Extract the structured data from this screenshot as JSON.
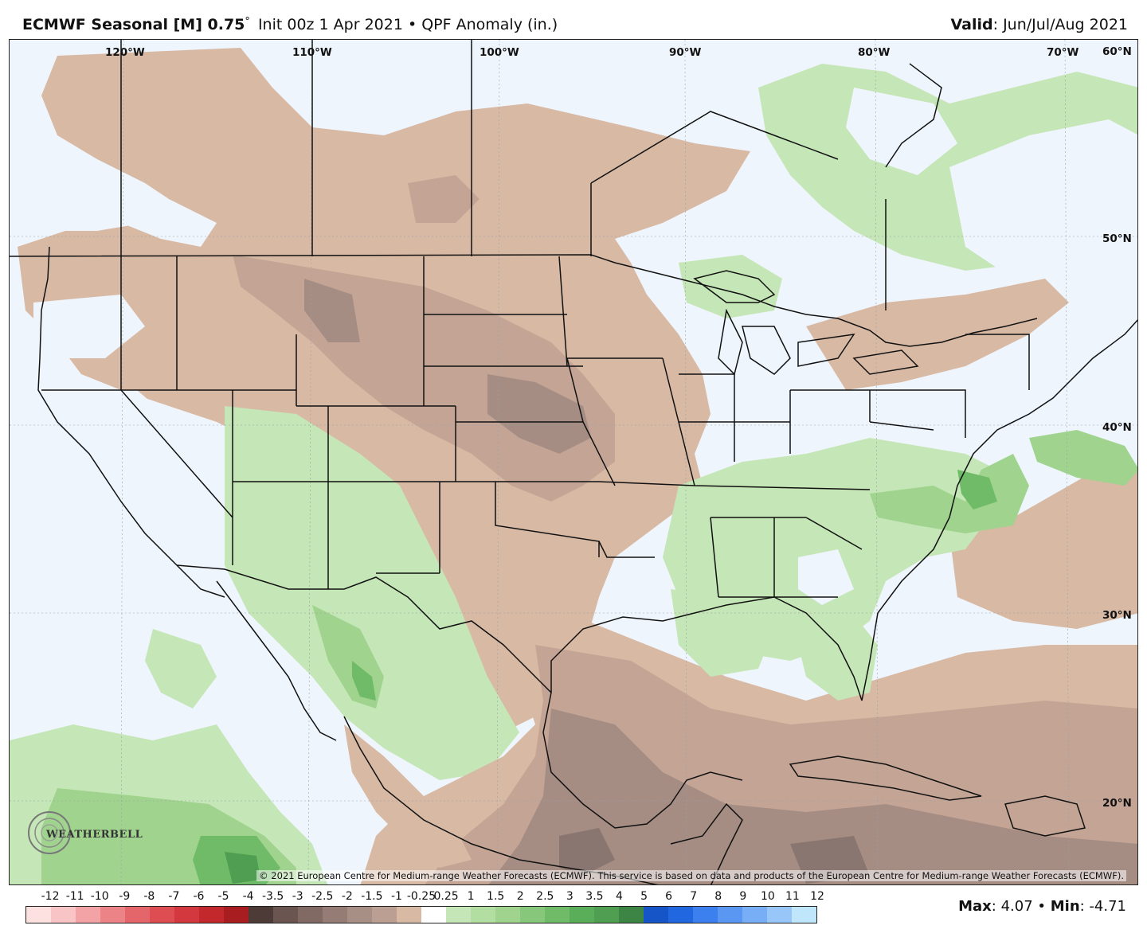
{
  "header": {
    "model": "ECMWF Seasonal [M] 0.75",
    "degree_symbol": "°",
    "init_text": "Init 00z 1 Apr 2021 • QPF Anomaly (in.)",
    "valid_label": "Valid",
    "valid_value": ": Jun/Jul/Aug 2021"
  },
  "map": {
    "longitude_labels": [
      "120°W",
      "110°W",
      "100°W",
      "90°W",
      "80°W",
      "70°W"
    ],
    "latitude_labels": [
      "60°N",
      "50°N",
      "40°N",
      "30°N",
      "20°N"
    ],
    "copyright": "© 2021 European Centre for Medium-range Weather Forecasts (ECMWF). This service is based on data and products of the European Centre for Medium-range Weather Forecasts (ECMWF).",
    "logo_text": "WEATHERBELL",
    "colors": {
      "ocean_background": "#eff5fd",
      "dry_light": "#d8b9a4",
      "dry_medium": "#c4a595",
      "dry_dark": "#a58d84",
      "dry_darkest": "#8a7670",
      "wet_light": "#c5e6b6",
      "wet_medium": "#9fd38e",
      "wet_dark": "#6fbb67",
      "wet_darkest": "#4f9e52"
    }
  },
  "colorbar": {
    "labels": [
      "-12",
      "-11",
      "-10",
      "-9",
      "-8",
      "-7",
      "-6",
      "-5",
      "-4",
      "-3.5",
      "-3",
      "-2.5",
      "-2",
      "-1.5",
      "-1",
      "-0.25",
      "0.25",
      "1",
      "1.5",
      "2",
      "2.5",
      "3",
      "3.5",
      "4",
      "5",
      "6",
      "7",
      "8",
      "9",
      "10",
      "11",
      "12"
    ],
    "colors": [
      "#fde0e0",
      "#f9c4c6",
      "#f3a3a6",
      "#ec8487",
      "#e5666a",
      "#dd4d52",
      "#d2383d",
      "#c2282c",
      "#a71d20",
      "#4d3b38",
      "#6b5550",
      "#806a63",
      "#957d75",
      "#a88f85",
      "#bb9f92",
      "#d8b9a4",
      "#ffffff",
      "#c5e6b6",
      "#b2dea2",
      "#9fd38e",
      "#86c77b",
      "#6fbb67",
      "#5aae5a",
      "#4f9e52",
      "#3d8545",
      "#1655c7",
      "#2168e0",
      "#3b80ee",
      "#5a97f2",
      "#78aef5",
      "#98c6f8",
      "#bfe6fb"
    ]
  },
  "stats": {
    "max_label": "Max",
    "max_value": ": 4.07",
    "separator": " • ",
    "min_label": "Min",
    "min_value": ": -4.71"
  }
}
